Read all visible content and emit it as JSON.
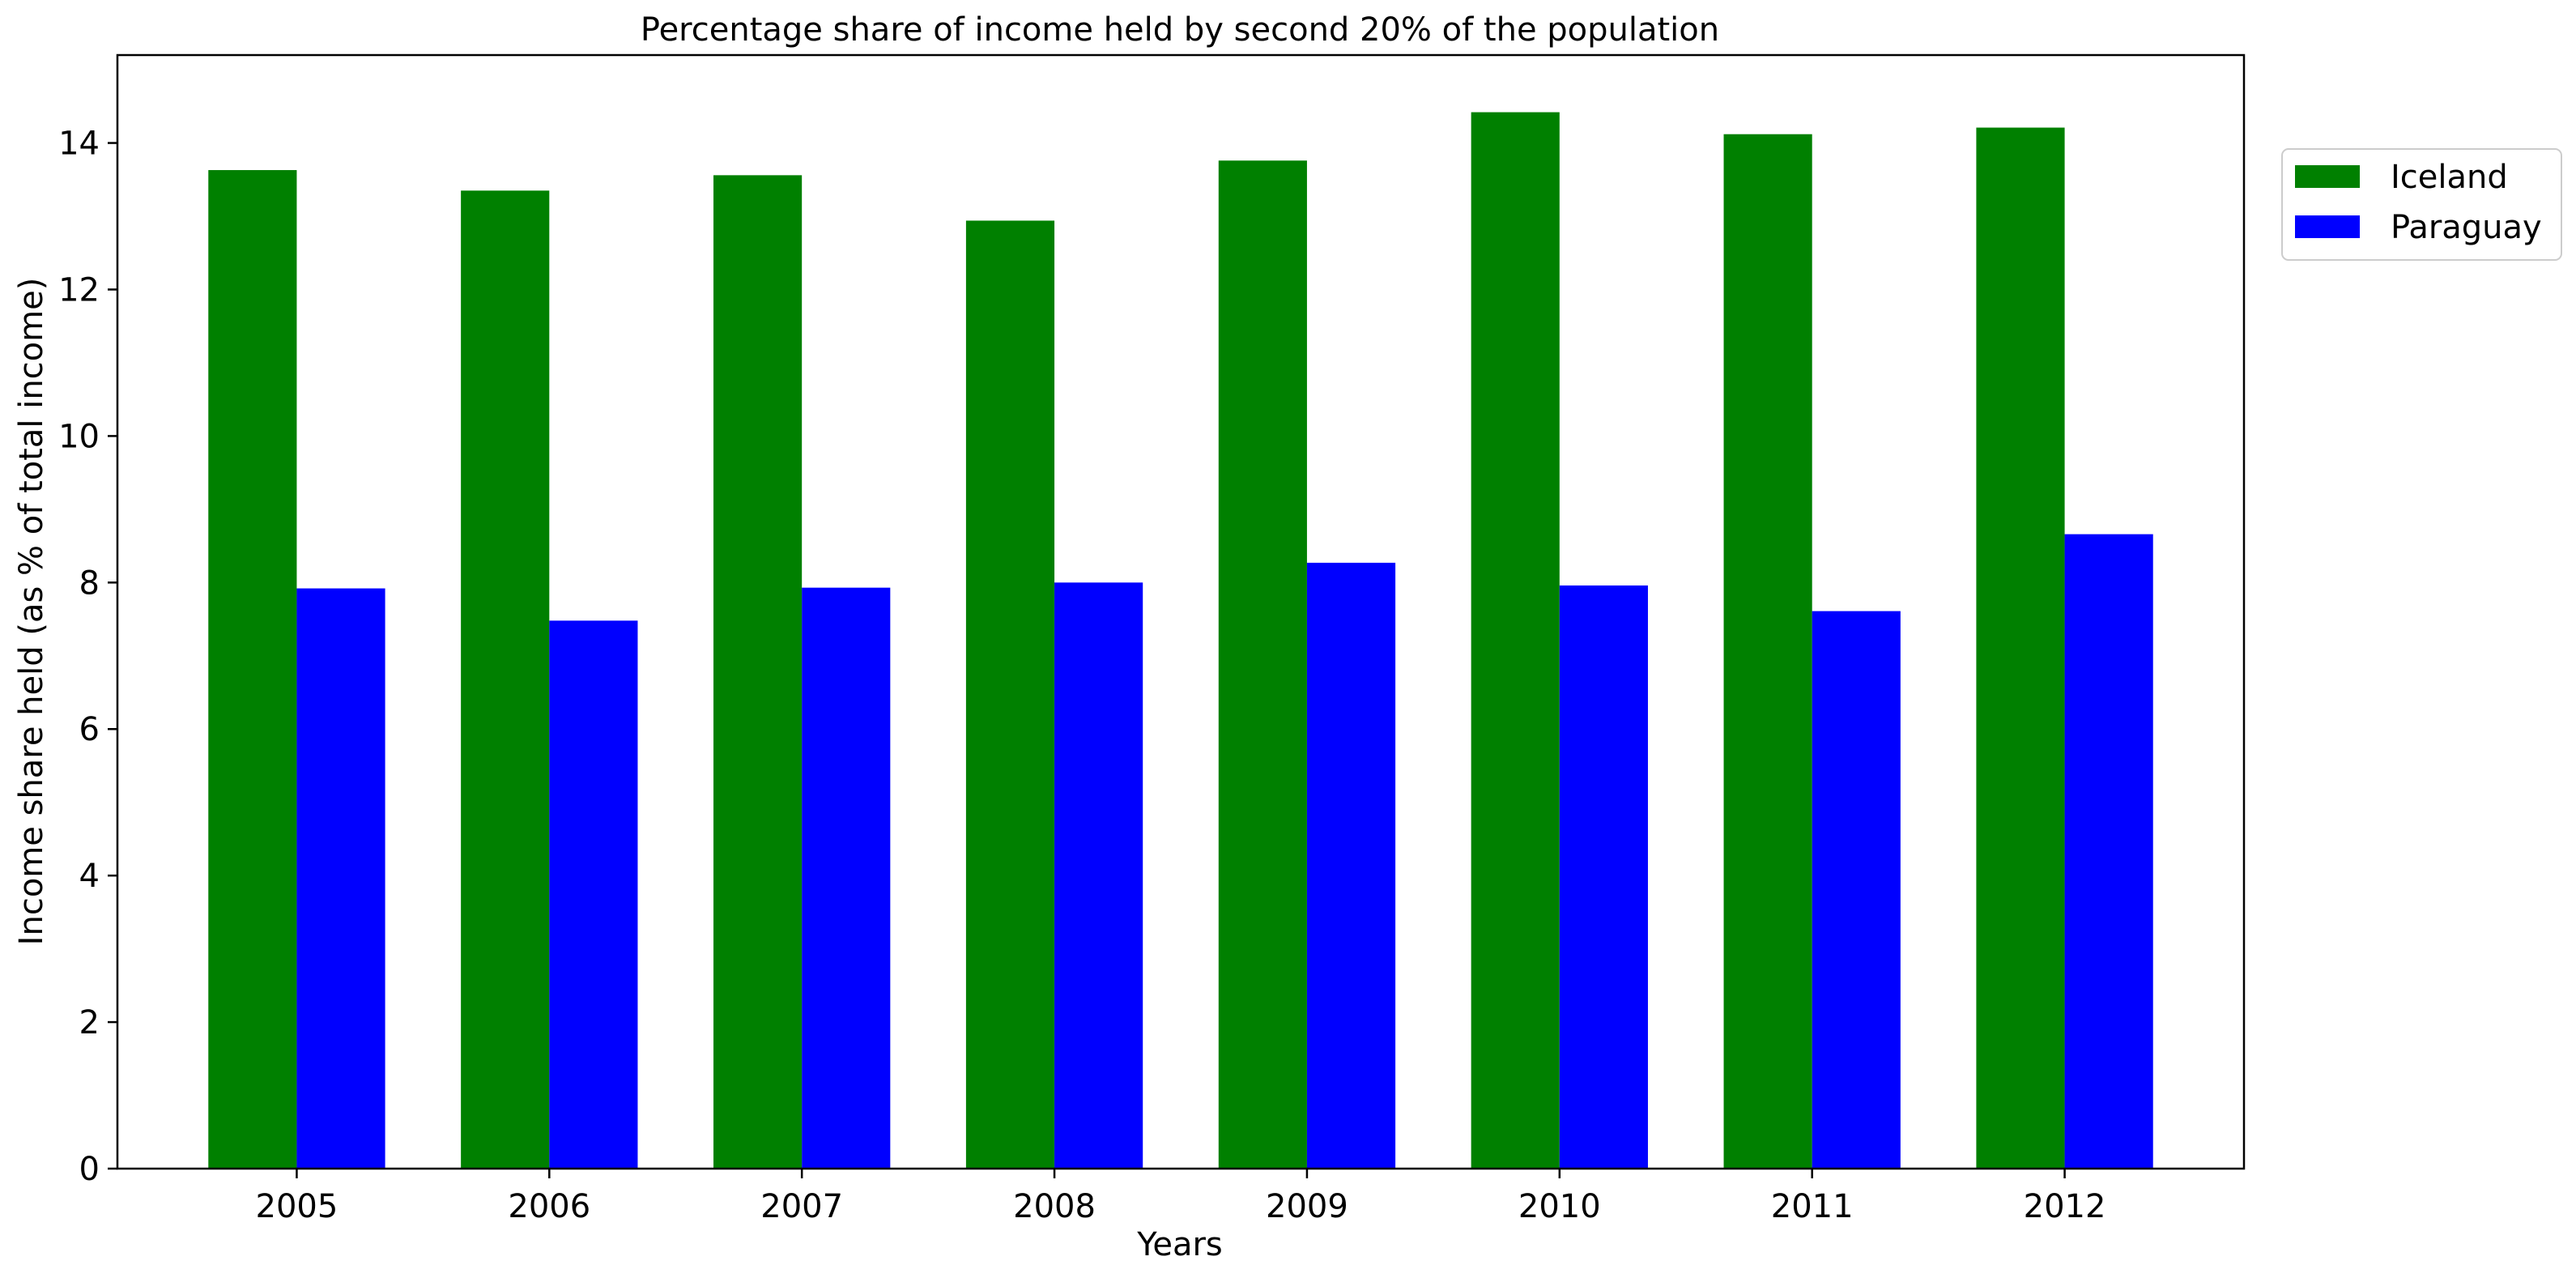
{
  "chart_data": {
    "type": "bar",
    "title": "Percentage share of income held by second 20% of the population",
    "xlabel": "Years",
    "ylabel": "Income share held (as % of total income)",
    "categories": [
      "2005",
      "2006",
      "2007",
      "2008",
      "2009",
      "2010",
      "2011",
      "2012"
    ],
    "series": [
      {
        "name": "Iceland",
        "color": "#008000",
        "values": [
          13.63,
          13.35,
          13.56,
          12.94,
          13.76,
          14.42,
          14.12,
          14.21
        ]
      },
      {
        "name": "Paraguay",
        "color": "#0000ff",
        "values": [
          7.92,
          7.48,
          7.93,
          8.0,
          8.27,
          7.96,
          7.61,
          8.66
        ]
      }
    ],
    "ylim": [
      0,
      15.2
    ],
    "yticks": [
      0,
      2,
      4,
      6,
      8,
      10,
      12,
      14
    ],
    "grid": false,
    "legend_position": "upper-right-outside"
  }
}
